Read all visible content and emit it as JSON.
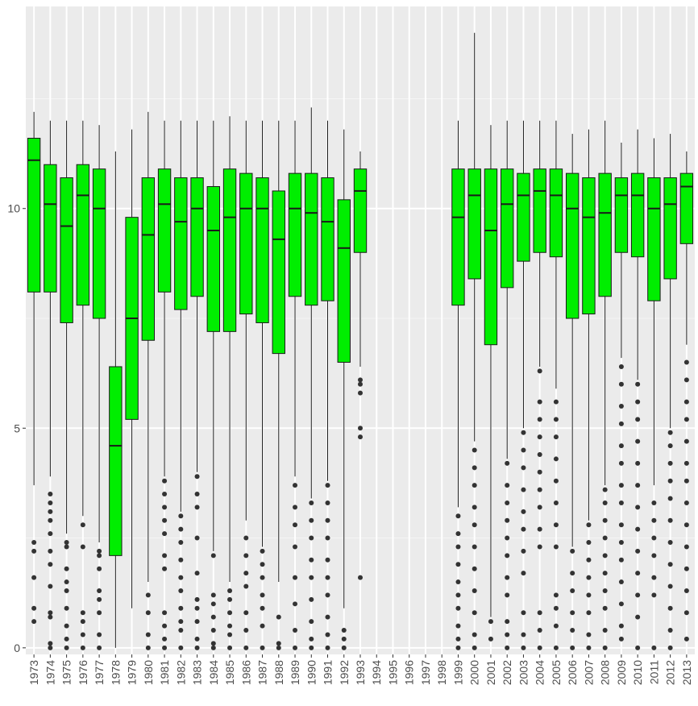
{
  "chart_data": {
    "type": "boxplot",
    "title": "",
    "xlabel": "",
    "ylabel": "",
    "ylim": [
      -0.15,
      14.6
    ],
    "y_ticks": [
      0,
      5,
      10
    ],
    "grid": true,
    "legend": "none",
    "colors": {
      "panel": "#ebebeb",
      "grid_major": "#ffffff",
      "grid_minor": "#f5f5f5",
      "box_fill": "#00ee00",
      "box_stroke": "#1a1a1a",
      "outlier": "#333333",
      "tick_text": "#4d4d4d"
    },
    "categories": [
      "1973",
      "1974",
      "1975",
      "1976",
      "1977",
      "1978",
      "1979",
      "1980",
      "1981",
      "1982",
      "1983",
      "1984",
      "1985",
      "1986",
      "1987",
      "1988",
      "1989",
      "1990",
      "1991",
      "1992",
      "1993",
      "1994",
      "1995",
      "1996",
      "1997",
      "1998",
      "1999",
      "2000",
      "2001",
      "2002",
      "2003",
      "2004",
      "2005",
      "2006",
      "2007",
      "2008",
      "2009",
      "2010",
      "2011",
      "2012",
      "2013"
    ],
    "boxes": [
      {
        "x": "1973",
        "min": 3.7,
        "q1": 8.1,
        "median": 11.1,
        "q3": 11.6,
        "max": 12.2,
        "outliers": [
          0.6,
          0.9,
          1.6,
          2.2,
          2.4
        ]
      },
      {
        "x": "1974",
        "min": 3.9,
        "q1": 8.1,
        "median": 10.1,
        "q3": 11.0,
        "max": 12.0,
        "outliers": [
          0,
          0.1,
          0.7,
          0.8,
          1.4,
          1.9,
          2.2,
          2.6,
          2.9,
          3.1,
          3.3,
          3.5
        ]
      },
      {
        "x": "1975",
        "min": 2.6,
        "q1": 7.4,
        "median": 9.6,
        "q3": 10.7,
        "max": 12.0,
        "outliers": [
          0,
          0.2,
          0.5,
          0.9,
          1.3,
          1.5,
          1.8,
          2.3,
          2.4
        ]
      },
      {
        "x": "1976",
        "min": 3.0,
        "q1": 7.8,
        "median": 10.3,
        "q3": 11.0,
        "max": 12.0,
        "outliers": [
          0,
          0.3,
          0.6,
          0.8,
          2.3,
          2.8
        ]
      },
      {
        "x": "1977",
        "min": 2.4,
        "q1": 7.5,
        "median": 10.0,
        "q3": 10.9,
        "max": 11.9,
        "outliers": [
          0,
          0.3,
          0.8,
          1.1,
          1.3,
          1.8,
          2.1,
          2.2
        ]
      },
      {
        "x": "1978",
        "min": 0,
        "q1": 2.1,
        "median": 4.6,
        "q3": 6.4,
        "max": 11.3,
        "outliers": []
      },
      {
        "x": "1979",
        "min": 0.9,
        "q1": 5.2,
        "median": 7.5,
        "q3": 9.8,
        "max": 11.8,
        "outliers": []
      },
      {
        "x": "1980",
        "min": 1.5,
        "q1": 7.0,
        "median": 9.4,
        "q3": 10.7,
        "max": 12.2,
        "outliers": [
          0,
          0.3,
          0.8,
          1.2
        ]
      },
      {
        "x": "1981",
        "min": 3.9,
        "q1": 8.1,
        "median": 10.1,
        "q3": 10.9,
        "max": 12.0,
        "outliers": [
          0,
          0.2,
          0.5,
          0.8,
          1.8,
          2.1,
          2.6,
          2.9,
          3.2,
          3.5,
          3.8
        ]
      },
      {
        "x": "1982",
        "min": 3.1,
        "q1": 7.7,
        "median": 9.7,
        "q3": 10.7,
        "max": 12.0,
        "outliers": [
          0,
          0.4,
          0.6,
          0.9,
          1.3,
          1.6,
          2.0,
          2.4,
          2.7,
          3.0
        ]
      },
      {
        "x": "1983",
        "min": 4.0,
        "q1": 8.0,
        "median": 10.0,
        "q3": 10.7,
        "max": 12.0,
        "outliers": [
          0,
          0.2,
          0.6,
          0.9,
          1.1,
          1.7,
          2.5,
          3.2,
          3.5,
          3.9
        ]
      },
      {
        "x": "1984",
        "min": 2.2,
        "q1": 7.2,
        "median": 9.5,
        "q3": 10.5,
        "max": 12.0,
        "outliers": [
          0,
          0.1,
          0.4,
          0.7,
          1.0,
          1.2,
          2.1
        ]
      },
      {
        "x": "1985",
        "min": 1.5,
        "q1": 7.2,
        "median": 9.8,
        "q3": 10.9,
        "max": 12.1,
        "outliers": [
          0,
          0.3,
          0.5,
          0.8,
          1.1,
          1.3
        ]
      },
      {
        "x": "1986",
        "min": 2.9,
        "q1": 7.6,
        "median": 10.0,
        "q3": 10.8,
        "max": 12.0,
        "outliers": [
          0,
          0.4,
          0.8,
          1.4,
          1.7,
          2.1,
          2.5
        ]
      },
      {
        "x": "1987",
        "min": 2.3,
        "q1": 7.4,
        "median": 10.0,
        "q3": 10.7,
        "max": 12.0,
        "outliers": [
          0,
          0.5,
          0.9,
          1.2,
          1.6,
          1.9,
          2.2
        ]
      },
      {
        "x": "1988",
        "min": 1.5,
        "q1": 6.7,
        "median": 9.3,
        "q3": 10.4,
        "max": 12.0,
        "outliers": [
          0,
          0.1,
          0.7
        ]
      },
      {
        "x": "1989",
        "min": 3.9,
        "q1": 8.0,
        "median": 10.0,
        "q3": 10.8,
        "max": 12.0,
        "outliers": [
          0,
          0.4,
          1.0,
          1.6,
          2.3,
          2.8,
          3.2,
          3.7
        ]
      },
      {
        "x": "1990",
        "min": 3.4,
        "q1": 7.8,
        "median": 9.9,
        "q3": 10.8,
        "max": 12.3,
        "outliers": [
          0,
          0.2,
          0.6,
          1.1,
          1.6,
          2.0,
          2.5,
          2.9,
          3.3
        ]
      },
      {
        "x": "1991",
        "min": 3.8,
        "q1": 7.9,
        "median": 9.7,
        "q3": 10.7,
        "max": 12.0,
        "outliers": [
          0,
          0.3,
          0.7,
          1.2,
          1.6,
          2.0,
          2.5,
          2.9,
          3.3,
          3.7
        ]
      },
      {
        "x": "1992",
        "min": 0.9,
        "q1": 6.5,
        "median": 9.1,
        "q3": 10.2,
        "max": 11.8,
        "outliers": [
          0,
          0.2,
          0.4
        ]
      },
      {
        "x": "1993",
        "min": 6.4,
        "q1": 9.0,
        "median": 10.4,
        "q3": 10.9,
        "max": 11.3,
        "outliers": [
          1.6,
          4.8,
          5.0,
          5.8,
          6.0,
          6.1
        ]
      },
      {
        "x": "1999",
        "min": 3.2,
        "q1": 7.8,
        "median": 9.8,
        "q3": 10.9,
        "max": 12.0,
        "outliers": [
          0,
          0.2,
          0.5,
          0.9,
          1.2,
          1.5,
          1.9,
          2.3,
          2.6,
          3.0
        ]
      },
      {
        "x": "2000",
        "min": 4.7,
        "q1": 8.4,
        "median": 10.3,
        "q3": 10.9,
        "max": 14.0,
        "outliers": [
          0,
          0.3,
          0.8,
          1.3,
          1.8,
          2.3,
          2.8,
          3.2,
          3.7,
          4.1,
          4.5
        ]
      },
      {
        "x": "2001",
        "min": 0.7,
        "q1": 6.9,
        "median": 9.5,
        "q3": 10.9,
        "max": 11.9,
        "outliers": [
          0.2,
          0.6
        ]
      },
      {
        "x": "2002",
        "min": 4.3,
        "q1": 8.2,
        "median": 10.1,
        "q3": 10.9,
        "max": 12.0,
        "outliers": [
          0,
          0.3,
          0.6,
          1.2,
          1.6,
          2.1,
          2.5,
          2.9,
          3.3,
          3.7,
          4.2
        ]
      },
      {
        "x": "2003",
        "min": 5.0,
        "q1": 8.8,
        "median": 10.3,
        "q3": 10.8,
        "max": 12.0,
        "outliers": [
          0,
          0.3,
          0.8,
          1.7,
          2.2,
          2.7,
          3.1,
          3.6,
          4.1,
          4.5,
          4.9
        ]
      },
      {
        "x": "2004",
        "min": 6.4,
        "q1": 9.0,
        "median": 10.4,
        "q3": 10.9,
        "max": 12.0,
        "outliers": [
          0,
          0.4,
          0.8,
          2.3,
          2.7,
          3.2,
          3.6,
          4.0,
          4.4,
          4.8,
          5.2,
          5.6,
          6.3
        ]
      },
      {
        "x": "2005",
        "min": 5.9,
        "q1": 8.9,
        "median": 10.3,
        "q3": 10.9,
        "max": 12.0,
        "outliers": [
          0,
          0.5,
          0.9,
          1.2,
          2.3,
          2.8,
          3.3,
          3.8,
          4.3,
          4.8,
          5.2,
          5.6
        ]
      },
      {
        "x": "2006",
        "min": 2.3,
        "q1": 7.5,
        "median": 10.0,
        "q3": 10.8,
        "max": 11.7,
        "outliers": [
          0,
          0.4,
          0.8,
          1.3,
          1.7,
          2.2
        ]
      },
      {
        "x": "2007",
        "min": 2.9,
        "q1": 7.6,
        "median": 9.8,
        "q3": 10.7,
        "max": 11.8,
        "outliers": [
          0,
          0.3,
          0.8,
          1.2,
          1.6,
          2.0,
          2.4,
          2.8
        ]
      },
      {
        "x": "2008",
        "min": 3.7,
        "q1": 8.0,
        "median": 9.9,
        "q3": 10.8,
        "max": 12.0,
        "outliers": [
          0,
          0.4,
          0.9,
          1.3,
          1.7,
          2.1,
          2.5,
          2.9,
          3.3,
          3.6
        ]
      },
      {
        "x": "2009",
        "min": 6.6,
        "q1": 9.0,
        "median": 10.3,
        "q3": 10.7,
        "max": 11.5,
        "outliers": [
          0.2,
          0.5,
          1.0,
          1.5,
          2.0,
          2.4,
          2.8,
          3.3,
          3.7,
          4.2,
          4.6,
          5.1,
          5.5,
          6.0,
          6.4
        ]
      },
      {
        "x": "2010",
        "min": 6.1,
        "q1": 8.9,
        "median": 10.3,
        "q3": 10.8,
        "max": 11.8,
        "outliers": [
          0,
          0.7,
          1.2,
          1.7,
          2.2,
          2.7,
          3.2,
          3.7,
          4.2,
          4.7,
          5.2,
          5.6,
          6.0
        ]
      },
      {
        "x": "2011",
        "min": 3.7,
        "q1": 7.9,
        "median": 10.0,
        "q3": 10.7,
        "max": 11.6,
        "outliers": [
          0,
          1.2,
          1.6,
          2.1,
          2.5,
          2.9,
          3.3
        ]
      },
      {
        "x": "2012",
        "min": 5.0,
        "q1": 8.4,
        "median": 10.1,
        "q3": 10.7,
        "max": 11.7,
        "outliers": [
          0,
          0.4,
          0.9,
          1.4,
          1.9,
          2.4,
          2.9,
          3.4,
          3.8,
          4.2,
          4.6,
          4.9
        ]
      },
      {
        "x": "2013",
        "min": 6.9,
        "q1": 9.2,
        "median": 10.5,
        "q3": 10.8,
        "max": 11.3,
        "outliers": [
          0.2,
          0.8,
          1.3,
          1.8,
          2.3,
          2.8,
          3.3,
          3.8,
          4.2,
          4.7,
          5.2,
          5.6,
          6.1,
          6.5
        ]
      }
    ]
  }
}
